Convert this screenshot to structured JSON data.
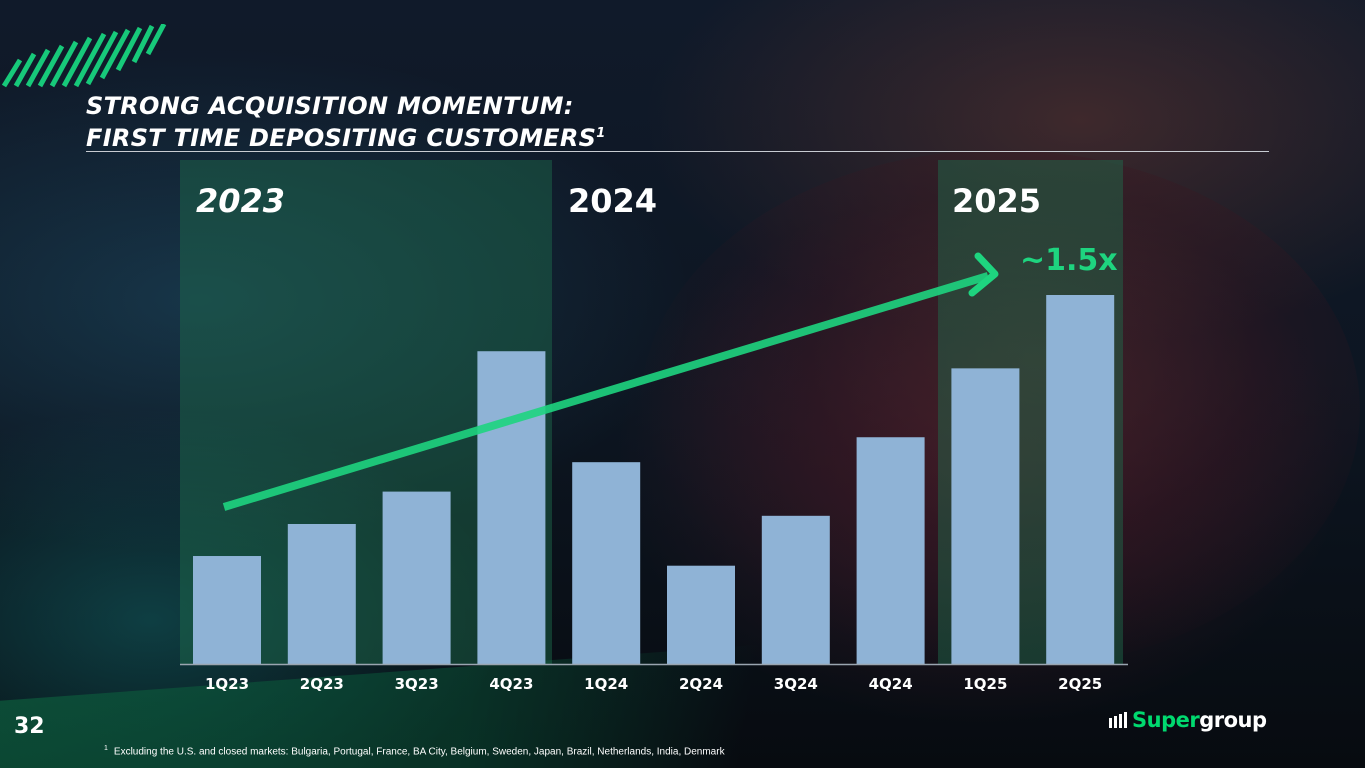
{
  "slide": {
    "title_line1": "STRONG ACQUISITION MOMENTUM:",
    "title_line2": "FIRST TIME DEPOSITING CUSTOMERS",
    "title_sup": "1",
    "page_number": "32",
    "footnote_marker": "1",
    "footnote": "Excluding the U.S. and closed markets: Bulgaria, Portugal, France, BA City, Belgium, Sweden, Japan, Brazil, Netherlands, India, Denmark",
    "logo_super": "Super",
    "logo_group": "group"
  },
  "colors": {
    "bar": "#8fb3d6",
    "accent": "#1ed47f",
    "highlight_panel": "#1f6e4e",
    "axis": "#9aa5b0",
    "text": "#ffffff"
  },
  "chart_data": {
    "type": "bar",
    "title": "",
    "xlabel": "",
    "ylabel": "",
    "categories": [
      "1Q23",
      "2Q23",
      "3Q23",
      "4Q23",
      "1Q24",
      "2Q24",
      "3Q24",
      "4Q24",
      "1Q25",
      "2Q25"
    ],
    "values": [
      29,
      37.6,
      46.3,
      84,
      54.2,
      26.4,
      39.8,
      60.9,
      79.4,
      99.1
    ],
    "ylim": [
      0,
      100
    ],
    "value_axis_shown": false,
    "grid": false,
    "year_groups": [
      {
        "label": "2023",
        "categories": [
          "1Q23",
          "2Q23",
          "3Q23",
          "4Q23"
        ],
        "highlighted": true
      },
      {
        "label": "2024",
        "categories": [
          "1Q24",
          "2Q24",
          "3Q24",
          "4Q24"
        ],
        "highlighted": false
      },
      {
        "label": "2025",
        "categories": [
          "1Q25",
          "2Q25"
        ],
        "highlighted": true
      }
    ],
    "annotation": {
      "text": "~1.5x",
      "type": "trend-arrow"
    }
  }
}
